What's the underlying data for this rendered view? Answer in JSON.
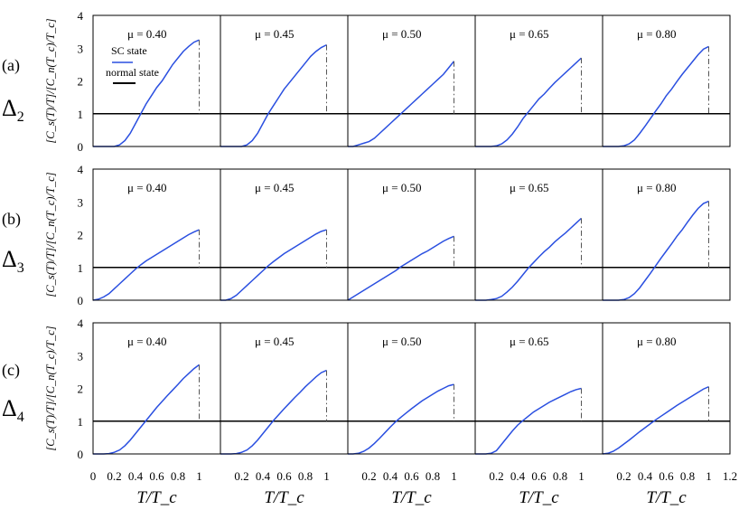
{
  "figure": {
    "rows": [
      {
        "tag": "(a)",
        "gap": "Δ",
        "gap_sub": "2"
      },
      {
        "tag": "(b)",
        "gap": "Δ",
        "gap_sub": "3"
      },
      {
        "tag": "(c)",
        "gap": "Δ",
        "gap_sub": "4"
      }
    ],
    "ylabel": "[C_s(T)/T]/[C_n(T_c)/T_c]",
    "xlabel": "T/T_c",
    "legend": {
      "sc": "SC state",
      "normal": "normal state"
    },
    "colors": {
      "sc": "#2a4fe0",
      "normal": "#000000",
      "frame": "#000000"
    },
    "yticks": [
      "0",
      "1",
      "2",
      "3",
      "4"
    ],
    "xticks": [
      "0",
      "0.2",
      "0.4",
      "0.6",
      "0.8",
      "1",
      "1.2"
    ]
  },
  "chart_data": {
    "type": "line",
    "xlabel": "T/T_c",
    "ylabel": "[C_s(T)/T]/[C_n(T_c)/T_c]",
    "xlim": [
      0,
      1.2
    ],
    "ylim": [
      0,
      4
    ],
    "x": [
      0.0,
      0.05,
      0.1,
      0.15,
      0.2,
      0.25,
      0.3,
      0.35,
      0.4,
      0.45,
      0.5,
      0.55,
      0.6,
      0.65,
      0.7,
      0.75,
      0.8,
      0.85,
      0.9,
      0.95,
      1.0
    ],
    "normal_state": 1.0,
    "panels": [
      {
        "row": "(a)",
        "gap": "Δ2",
        "mu_label": "μ = 0.40",
        "jump_at": 1.0,
        "values": [
          0,
          0,
          0,
          0,
          0,
          0.05,
          0.18,
          0.4,
          0.7,
          1.0,
          1.3,
          1.55,
          1.8,
          2.0,
          2.25,
          2.5,
          2.7,
          2.9,
          3.05,
          3.18,
          3.25
        ]
      },
      {
        "row": "(a)",
        "gap": "Δ2",
        "mu_label": "μ = 0.45",
        "jump_at": 1.0,
        "values": [
          0,
          0,
          0,
          0,
          0,
          0.05,
          0.18,
          0.4,
          0.7,
          1.0,
          1.25,
          1.5,
          1.75,
          1.95,
          2.15,
          2.35,
          2.55,
          2.75,
          2.9,
          3.02,
          3.1
        ]
      },
      {
        "row": "(a)",
        "gap": "Δ2",
        "mu_label": "μ = 0.50",
        "jump_at": 1.0,
        "values": [
          0,
          0,
          0.05,
          0.1,
          0.15,
          0.25,
          0.4,
          0.55,
          0.7,
          0.85,
          1.0,
          1.15,
          1.3,
          1.45,
          1.6,
          1.75,
          1.9,
          2.05,
          2.2,
          2.4,
          2.6
        ]
      },
      {
        "row": "(a)",
        "gap": "Δ2",
        "mu_label": "μ = 0.65",
        "jump_at": 1.0,
        "values": [
          0,
          0,
          0,
          0,
          0.02,
          0.08,
          0.2,
          0.38,
          0.6,
          0.85,
          1.05,
          1.25,
          1.45,
          1.6,
          1.78,
          1.95,
          2.1,
          2.25,
          2.4,
          2.55,
          2.7
        ]
      },
      {
        "row": "(a)",
        "gap": "Δ2",
        "mu_label": "μ = 0.80",
        "jump_at": 1.0,
        "values": [
          0,
          0,
          0,
          0,
          0.02,
          0.08,
          0.2,
          0.4,
          0.62,
          0.85,
          1.08,
          1.3,
          1.55,
          1.75,
          1.98,
          2.2,
          2.4,
          2.6,
          2.8,
          2.97,
          3.05
        ]
      },
      {
        "row": "(b)",
        "gap": "Δ3",
        "mu_label": "μ = 0.40",
        "jump_at": 1.0,
        "values": [
          0,
          0.03,
          0.1,
          0.2,
          0.35,
          0.5,
          0.65,
          0.8,
          0.95,
          1.08,
          1.2,
          1.3,
          1.4,
          1.5,
          1.6,
          1.7,
          1.8,
          1.9,
          2.0,
          2.08,
          2.15
        ]
      },
      {
        "row": "(b)",
        "gap": "Δ3",
        "mu_label": "μ = 0.45",
        "jump_at": 1.0,
        "values": [
          0,
          0,
          0.05,
          0.15,
          0.3,
          0.45,
          0.6,
          0.75,
          0.9,
          1.05,
          1.18,
          1.3,
          1.42,
          1.52,
          1.62,
          1.72,
          1.82,
          1.92,
          2.02,
          2.1,
          2.15
        ]
      },
      {
        "row": "(b)",
        "gap": "Δ3",
        "mu_label": "μ = 0.50",
        "jump_at": 1.0,
        "values": [
          0,
          0.1,
          0.2,
          0.3,
          0.4,
          0.5,
          0.6,
          0.7,
          0.8,
          0.9,
          1.02,
          1.12,
          1.22,
          1.32,
          1.42,
          1.5,
          1.6,
          1.7,
          1.8,
          1.88,
          1.95
        ]
      },
      {
        "row": "(b)",
        "gap": "Δ3",
        "mu_label": "μ = 0.65",
        "jump_at": 1.0,
        "values": [
          0,
          0,
          0,
          0.02,
          0.05,
          0.12,
          0.25,
          0.4,
          0.58,
          0.78,
          0.98,
          1.15,
          1.32,
          1.48,
          1.62,
          1.78,
          1.92,
          2.05,
          2.2,
          2.35,
          2.5
        ]
      },
      {
        "row": "(b)",
        "gap": "Δ3",
        "mu_label": "μ = 0.80",
        "jump_at": 1.0,
        "values": [
          0,
          0,
          0,
          0,
          0.02,
          0.08,
          0.2,
          0.38,
          0.6,
          0.82,
          1.05,
          1.28,
          1.5,
          1.72,
          1.95,
          2.15,
          2.38,
          2.6,
          2.8,
          2.95,
          3.02
        ]
      },
      {
        "row": "(c)",
        "gap": "Δ4",
        "mu_label": "μ = 0.40",
        "jump_at": 1.0,
        "values": [
          0,
          0,
          0,
          0.01,
          0.05,
          0.12,
          0.25,
          0.42,
          0.62,
          0.82,
          1.02,
          1.22,
          1.42,
          1.6,
          1.78,
          1.95,
          2.12,
          2.3,
          2.45,
          2.6,
          2.72
        ]
      },
      {
        "row": "(c)",
        "gap": "Δ4",
        "mu_label": "μ = 0.45",
        "jump_at": 1.0,
        "values": [
          0,
          0,
          0,
          0.01,
          0.05,
          0.12,
          0.25,
          0.42,
          0.62,
          0.82,
          1.02,
          1.2,
          1.38,
          1.55,
          1.72,
          1.88,
          2.05,
          2.2,
          2.35,
          2.48,
          2.55
        ]
      },
      {
        "row": "(c)",
        "gap": "Δ4",
        "mu_label": "μ = 0.50",
        "jump_at": 1.0,
        "values": [
          0,
          0,
          0.02,
          0.08,
          0.18,
          0.32,
          0.48,
          0.65,
          0.82,
          0.98,
          1.12,
          1.25,
          1.38,
          1.5,
          1.62,
          1.72,
          1.82,
          1.92,
          2.0,
          2.08,
          2.12
        ]
      },
      {
        "row": "(c)",
        "gap": "Δ4",
        "mu_label": "μ = 0.65",
        "jump_at": 1.0,
        "values": [
          0,
          0,
          0,
          0.02,
          0.1,
          0.3,
          0.5,
          0.7,
          0.88,
          1.02,
          1.15,
          1.28,
          1.38,
          1.48,
          1.58,
          1.66,
          1.74,
          1.82,
          1.9,
          1.96,
          2.0
        ]
      },
      {
        "row": "(c)",
        "gap": "Δ4",
        "mu_label": "μ = 0.80",
        "jump_at": 1.0,
        "values": [
          0,
          0.02,
          0.08,
          0.18,
          0.3,
          0.42,
          0.55,
          0.68,
          0.8,
          0.92,
          1.04,
          1.15,
          1.26,
          1.37,
          1.48,
          1.58,
          1.68,
          1.78,
          1.88,
          1.98,
          2.05
        ]
      }
    ]
  }
}
